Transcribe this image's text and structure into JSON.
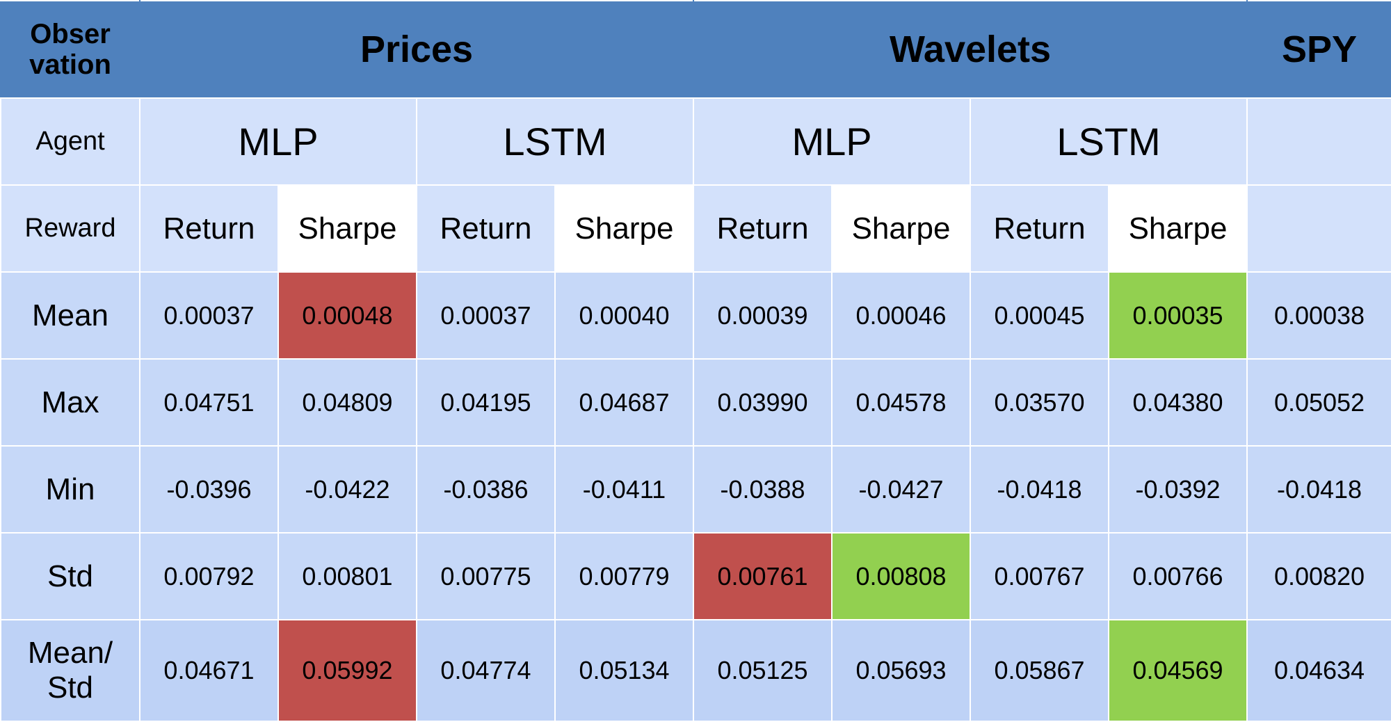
{
  "header": {
    "observation_label": "Obser\nvation",
    "groups": [
      "Prices",
      "Wavelets",
      "SPY"
    ]
  },
  "agent_row": {
    "label": "Agent",
    "agents": [
      "MLP",
      "LSTM",
      "MLP",
      "LSTM",
      ""
    ]
  },
  "reward_row": {
    "label": "Reward",
    "rewards": [
      "Return",
      "Sharpe",
      "Return",
      "Sharpe",
      "Return",
      "Sharpe",
      "Return",
      "Sharpe",
      ""
    ]
  },
  "rows": [
    {
      "label": "Mean",
      "values": [
        "0.00037",
        "0.00048",
        "0.00037",
        "0.00040",
        "0.00039",
        "0.00046",
        "0.00045",
        "0.00035",
        "0.00038"
      ]
    },
    {
      "label": "Max",
      "values": [
        "0.04751",
        "0.04809",
        "0.04195",
        "0.04687",
        "0.03990",
        "0.04578",
        "0.03570",
        "0.04380",
        "0.05052"
      ]
    },
    {
      "label": "Min",
      "values": [
        "-0.0396",
        "-0.0422",
        "-0.0386",
        "-0.0411",
        "-0.0388",
        "-0.0427",
        "-0.0418",
        "-0.0392",
        "-0.0418"
      ]
    },
    {
      "label": "Std",
      "values": [
        "0.00792",
        "0.00801",
        "0.00775",
        "0.00779",
        "0.00761",
        "0.00808",
        "0.00767",
        "0.00766",
        "0.00820"
      ]
    },
    {
      "label": "Mean/\nStd",
      "values": [
        "0.04671",
        "0.05992",
        "0.04774",
        "0.05134",
        "0.05125",
        "0.05693",
        "0.05867",
        "0.04569",
        "0.04634"
      ]
    }
  ],
  "colors": {
    "header_bg": "#4f81bd",
    "highlight_red": "#c0504d",
    "highlight_green": "#92d050"
  }
}
